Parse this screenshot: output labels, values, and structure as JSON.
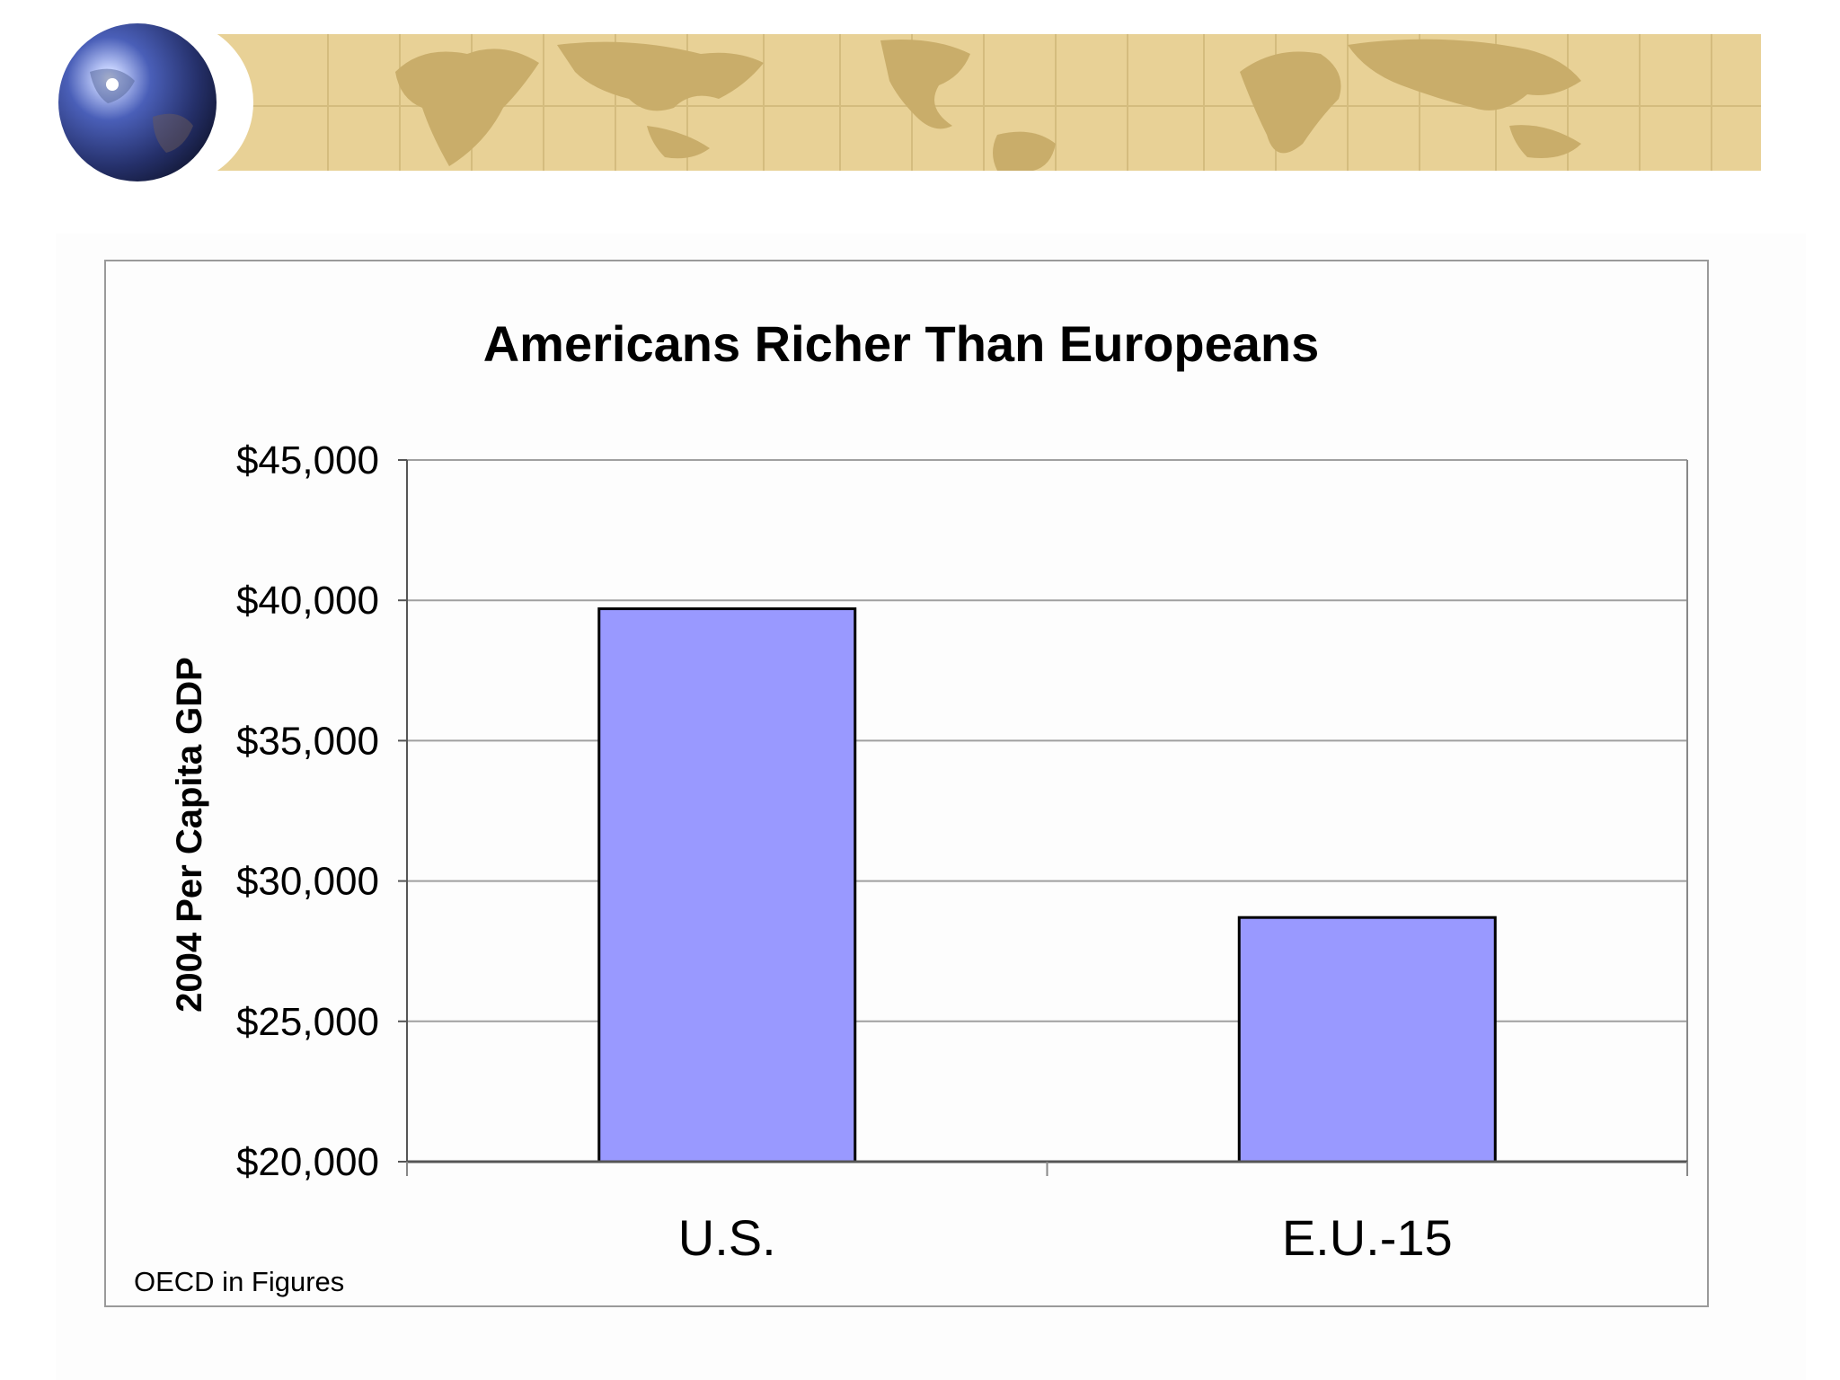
{
  "chart_data": {
    "type": "bar",
    "title": "Americans Richer Than Europeans",
    "xlabel": "",
    "ylabel": "2004 Per Capita GDP",
    "categories": [
      "U.S.",
      "E.U.-15"
    ],
    "values": [
      39700,
      28700
    ],
    "ylim": [
      20000,
      45000
    ],
    "yticks": [
      20000,
      25000,
      30000,
      35000,
      40000,
      45000
    ],
    "ytick_labels": [
      "$20,000",
      "$25,000",
      "$30,000",
      "$35,000",
      "$40,000",
      "$45,000"
    ],
    "grid": true,
    "legend": "none",
    "bar_color": "#9999ff",
    "bar_border_color": "#000000",
    "gridline_color": "#a0a0a0"
  },
  "source_note": "OECD in Figures",
  "colors": {
    "banner_tan": "#e8d196",
    "banner_land": "#c9ad6a",
    "globe_blue": "#3a4fa0"
  },
  "icons": {
    "globe": "globe-icon",
    "world_map": "world-map-banner"
  }
}
